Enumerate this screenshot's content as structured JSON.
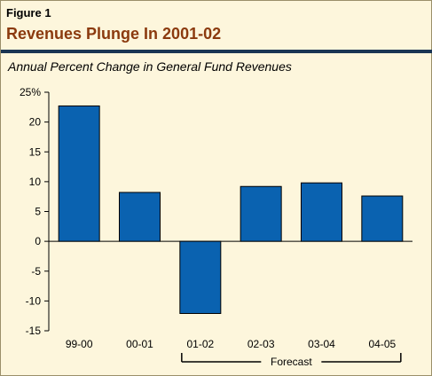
{
  "figure": {
    "label": "Figure 1",
    "title": "Revenues Plunge In 2001-02"
  },
  "chart_data": {
    "type": "bar",
    "title": "Annual Percent Change in General Fund Revenues",
    "categories": [
      "99-00",
      "00-01",
      "01-02",
      "02-03",
      "03-04",
      "04-05"
    ],
    "values": [
      22.7,
      8.2,
      -12.1,
      9.2,
      9.8,
      7.6
    ],
    "ylim": [
      -15,
      25
    ],
    "yticks": [
      -15,
      -10,
      -5,
      0,
      5,
      10,
      15,
      20,
      25
    ],
    "ytick_labels": [
      "-15",
      "-10",
      "-5",
      "0",
      "5",
      "10",
      "15",
      "20",
      "25%"
    ],
    "bar_color": "#0a62b0",
    "annotation": {
      "text": "Forecast",
      "spans_categories": [
        "01-02",
        "02-03",
        "03-04",
        "04-05"
      ]
    }
  }
}
